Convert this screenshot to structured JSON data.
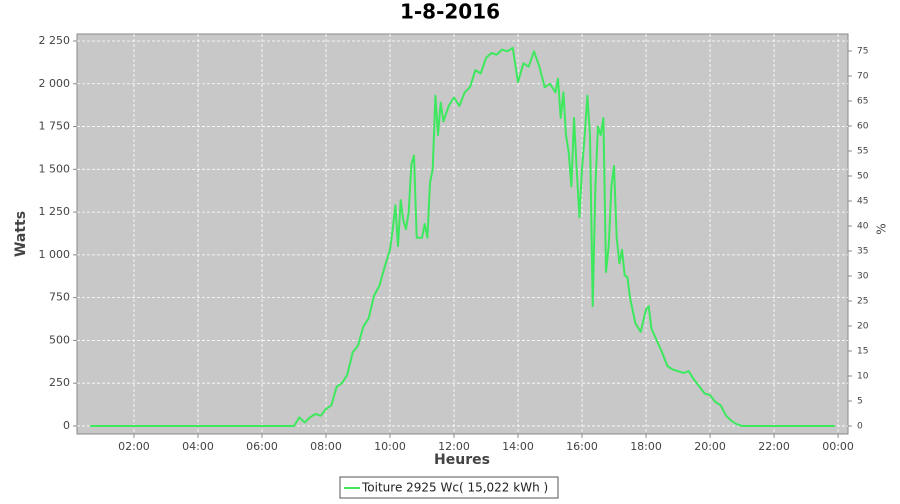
{
  "chart_data": {
    "type": "line",
    "title": "1-8-2016",
    "x_label": "Heures",
    "y_label": "Watts",
    "y2_label": "%",
    "x": [
      0.63,
      1,
      2,
      3,
      4,
      5,
      6,
      6.75,
      7,
      7.167,
      7.333,
      7.5,
      7.667,
      7.833,
      8,
      8.167,
      8.333,
      8.5,
      8.667,
      8.833,
      9,
      9.167,
      9.333,
      9.5,
      9.667,
      9.833,
      10,
      10.083,
      10.167,
      10.25,
      10.333,
      10.417,
      10.5,
      10.583,
      10.667,
      10.75,
      10.833,
      11,
      11.083,
      11.167,
      11.25,
      11.333,
      11.417,
      11.5,
      11.583,
      11.667,
      11.833,
      12,
      12.167,
      12.333,
      12.5,
      12.667,
      12.833,
      13,
      13.167,
      13.333,
      13.5,
      13.667,
      13.833,
      14,
      14.167,
      14.333,
      14.5,
      14.667,
      14.833,
      15,
      15.167,
      15.25,
      15.333,
      15.417,
      15.5,
      15.583,
      15.667,
      15.75,
      15.833,
      15.917,
      16,
      16.083,
      16.167,
      16.25,
      16.333,
      16.417,
      16.5,
      16.583,
      16.667,
      16.75,
      16.833,
      16.917,
      17,
      17.083,
      17.167,
      17.25,
      17.333,
      17.417,
      17.5,
      17.667,
      17.833,
      18,
      18.083,
      18.167,
      18.333,
      18.5,
      18.667,
      18.833,
      19,
      19.167,
      19.333,
      19.5,
      19.667,
      19.833,
      20,
      20.167,
      20.333,
      20.5,
      20.667,
      20.833,
      21,
      22,
      23,
      23.9
    ],
    "series": [
      {
        "name": "Toiture 2925 Wc( 15,022 kWh )",
        "color": "#3de85e",
        "values": [
          0,
          0,
          0,
          0,
          0,
          0,
          0,
          0,
          0,
          50,
          20,
          50,
          70,
          60,
          100,
          120,
          230,
          250,
          300,
          430,
          470,
          580,
          630,
          760,
          820,
          930,
          1030,
          1150,
          1290,
          1050,
          1320,
          1200,
          1150,
          1250,
          1530,
          1580,
          1100,
          1100,
          1180,
          1100,
          1420,
          1500,
          1930,
          1700,
          1890,
          1780,
          1870,
          1920,
          1870,
          1950,
          1980,
          2080,
          2060,
          2150,
          2180,
          2170,
          2200,
          2190,
          2210,
          2010,
          2120,
          2100,
          2190,
          2100,
          1980,
          2000,
          1950,
          2030,
          1800,
          1950,
          1700,
          1600,
          1400,
          1800,
          1500,
          1220,
          1500,
          1700,
          1930,
          1700,
          700,
          1400,
          1750,
          1700,
          1800,
          900,
          1050,
          1400,
          1520,
          1100,
          950,
          1030,
          880,
          870,
          750,
          600,
          550,
          680,
          700,
          570,
          500,
          430,
          350,
          330,
          320,
          310,
          320,
          270,
          230,
          190,
          180,
          140,
          120,
          60,
          30,
          10,
          0,
          0,
          0,
          0
        ]
      }
    ],
    "xlim": [
      0.22,
      24.31
    ],
    "xticks": [
      {
        "value": 2,
        "label": "02:00"
      },
      {
        "value": 4,
        "label": "04:00"
      },
      {
        "value": 6,
        "label": "06:00"
      },
      {
        "value": 8,
        "label": "08:00"
      },
      {
        "value": 10,
        "label": "10:00"
      },
      {
        "value": 12,
        "label": "12:00"
      },
      {
        "value": 14,
        "label": "14:00"
      },
      {
        "value": 16,
        "label": "16:00"
      },
      {
        "value": 18,
        "label": "18:00"
      },
      {
        "value": 20,
        "label": "20:00"
      },
      {
        "value": 22,
        "label": "22:00"
      },
      {
        "value": 24,
        "label": "00:00"
      }
    ],
    "ylim": [
      -47,
      2291
    ],
    "yticks": [
      0,
      250,
      500,
      750,
      {
        "value": 1000,
        "label": "1 000"
      },
      {
        "value": 1250,
        "label": "1 250"
      },
      {
        "value": 1500,
        "label": "1 500"
      },
      {
        "value": 1750,
        "label": "1 750"
      },
      {
        "value": 2000,
        "label": "2 000"
      },
      {
        "value": 2250,
        "label": "2 250"
      }
    ],
    "y2lim": [
      -1.6,
      78.4
    ],
    "y2ticks": [
      0,
      5,
      10,
      15,
      20,
      25,
      30,
      35,
      40,
      45,
      50,
      55,
      60,
      65,
      70,
      75
    ],
    "grid": true,
    "legend": "bottom"
  }
}
